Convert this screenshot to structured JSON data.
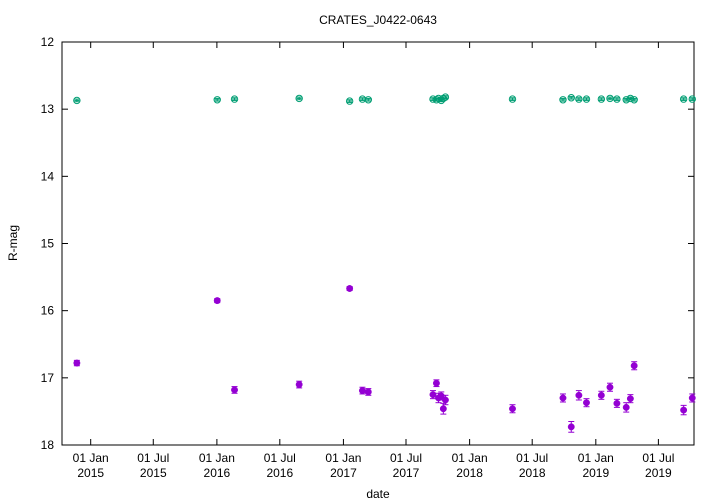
{
  "chart_data": {
    "type": "scatter",
    "title": "CRATES_J0422-0643",
    "xlabel": "date",
    "ylabel": "R-mag",
    "y_inverted": true,
    "ylim": [
      12,
      18
    ],
    "xlim": [
      "2014-10-10",
      "2019-10-12"
    ],
    "grid": false,
    "legend": "none",
    "y_ticks": [
      12,
      13,
      14,
      15,
      16,
      17,
      18
    ],
    "x_ticks": [
      {
        "date": "2015-01-01",
        "line1": "01 Jan",
        "line2": "2015"
      },
      {
        "date": "2015-07-01",
        "line1": "01 Jul",
        "line2": "2015"
      },
      {
        "date": "2016-01-01",
        "line1": "01 Jan",
        "line2": "2016"
      },
      {
        "date": "2016-07-01",
        "line1": "01 Jul",
        "line2": "2016"
      },
      {
        "date": "2017-01-01",
        "line1": "01 Jan",
        "line2": "2017"
      },
      {
        "date": "2017-07-01",
        "line1": "01 Jul",
        "line2": "2017"
      },
      {
        "date": "2018-01-01",
        "line1": "01 Jan",
        "line2": "2018"
      },
      {
        "date": "2018-07-01",
        "line1": "01 Jul",
        "line2": "2018"
      },
      {
        "date": "2019-01-01",
        "line1": "01 Jan",
        "line2": "2019"
      },
      {
        "date": "2019-07-01",
        "line1": "01 Jul",
        "line2": "2019"
      }
    ],
    "series": [
      {
        "color": "#009e73",
        "marker": "open-circle",
        "points": [
          {
            "date": "2014-11-22",
            "mag": 12.87,
            "err": 0.02
          },
          {
            "date": "2016-01-02",
            "mag": 12.86,
            "err": 0.02
          },
          {
            "date": "2016-02-21",
            "mag": 12.85,
            "err": 0.02
          },
          {
            "date": "2016-08-26",
            "mag": 12.84,
            "err": 0.02
          },
          {
            "date": "2017-01-19",
            "mag": 12.88,
            "err": 0.02
          },
          {
            "date": "2017-02-25",
            "mag": 12.85,
            "err": 0.02
          },
          {
            "date": "2017-03-14",
            "mag": 12.86,
            "err": 0.02
          },
          {
            "date": "2017-09-17",
            "mag": 12.85,
            "err": 0.02
          },
          {
            "date": "2017-09-27",
            "mag": 12.86,
            "err": 0.02
          },
          {
            "date": "2017-10-03",
            "mag": 12.84,
            "err": 0.02
          },
          {
            "date": "2017-10-11",
            "mag": 12.87,
            "err": 0.02
          },
          {
            "date": "2017-10-17",
            "mag": 12.84,
            "err": 0.02
          },
          {
            "date": "2017-10-23",
            "mag": 12.82,
            "err": 0.02
          },
          {
            "date": "2018-05-05",
            "mag": 12.85,
            "err": 0.02
          },
          {
            "date": "2018-09-28",
            "mag": 12.86,
            "err": 0.02
          },
          {
            "date": "2018-10-22",
            "mag": 12.83,
            "err": 0.02
          },
          {
            "date": "2018-11-13",
            "mag": 12.85,
            "err": 0.02
          },
          {
            "date": "2018-12-05",
            "mag": 12.85,
            "err": 0.02
          },
          {
            "date": "2019-01-17",
            "mag": 12.85,
            "err": 0.02
          },
          {
            "date": "2019-02-11",
            "mag": 12.84,
            "err": 0.02
          },
          {
            "date": "2019-03-03",
            "mag": 12.85,
            "err": 0.02
          },
          {
            "date": "2019-03-30",
            "mag": 12.86,
            "err": 0.02
          },
          {
            "date": "2019-04-11",
            "mag": 12.84,
            "err": 0.02
          },
          {
            "date": "2019-04-22",
            "mag": 12.86,
            "err": 0.02
          },
          {
            "date": "2019-09-12",
            "mag": 12.85,
            "err": 0.02
          },
          {
            "date": "2019-10-07",
            "mag": 12.85,
            "err": 0.02
          }
        ]
      },
      {
        "color": "#9400d3",
        "marker": "filled-circle",
        "points": [
          {
            "date": "2014-11-22",
            "mag": 16.78,
            "err": 0.04
          },
          {
            "date": "2016-01-02",
            "mag": 15.85,
            "err": 0.03
          },
          {
            "date": "2016-02-21",
            "mag": 17.18,
            "err": 0.05
          },
          {
            "date": "2016-08-26",
            "mag": 17.1,
            "err": 0.05
          },
          {
            "date": "2017-01-19",
            "mag": 15.67,
            "err": 0.03
          },
          {
            "date": "2017-02-25",
            "mag": 17.19,
            "err": 0.05
          },
          {
            "date": "2017-03-14",
            "mag": 17.21,
            "err": 0.05
          },
          {
            "date": "2017-09-17",
            "mag": 17.25,
            "err": 0.06
          },
          {
            "date": "2017-09-27",
            "mag": 17.08,
            "err": 0.05
          },
          {
            "date": "2017-10-03",
            "mag": 17.3,
            "err": 0.07
          },
          {
            "date": "2017-10-11",
            "mag": 17.27,
            "err": 0.06
          },
          {
            "date": "2017-10-17",
            "mag": 17.46,
            "err": 0.08
          },
          {
            "date": "2017-10-23",
            "mag": 17.33,
            "err": 0.07
          },
          {
            "date": "2018-05-05",
            "mag": 17.46,
            "err": 0.06
          },
          {
            "date": "2018-09-28",
            "mag": 17.3,
            "err": 0.06
          },
          {
            "date": "2018-10-22",
            "mag": 17.73,
            "err": 0.08
          },
          {
            "date": "2018-11-13",
            "mag": 17.26,
            "err": 0.07
          },
          {
            "date": "2018-12-05",
            "mag": 17.37,
            "err": 0.06
          },
          {
            "date": "2019-01-17",
            "mag": 17.26,
            "err": 0.06
          },
          {
            "date": "2019-02-11",
            "mag": 17.14,
            "err": 0.06
          },
          {
            "date": "2019-03-03",
            "mag": 17.38,
            "err": 0.06
          },
          {
            "date": "2019-03-30",
            "mag": 17.44,
            "err": 0.07
          },
          {
            "date": "2019-04-11",
            "mag": 17.31,
            "err": 0.06
          },
          {
            "date": "2019-04-22",
            "mag": 16.82,
            "err": 0.06
          },
          {
            "date": "2019-09-12",
            "mag": 17.48,
            "err": 0.07
          },
          {
            "date": "2019-10-07",
            "mag": 17.3,
            "err": 0.06
          }
        ]
      }
    ]
  }
}
